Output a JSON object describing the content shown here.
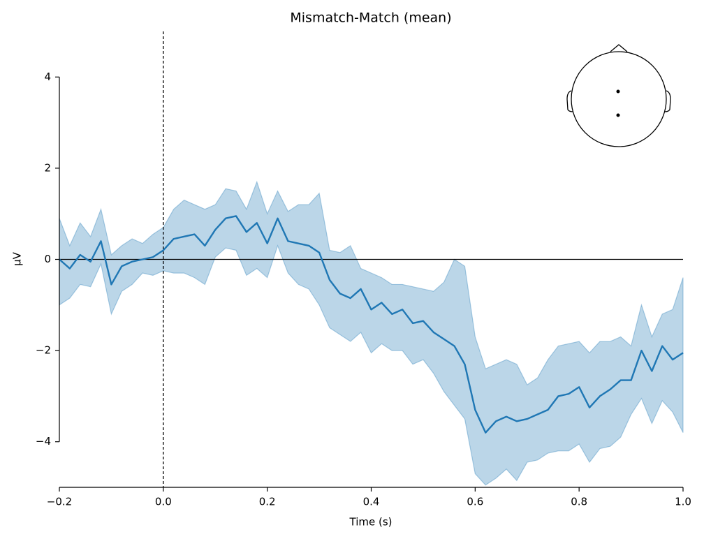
{
  "chart_data": {
    "type": "line",
    "title": "Mismatch-Match (mean)",
    "xlabel": "Time (s)",
    "ylabel": "µV",
    "color": "#1f77b4",
    "x": [
      -0.2,
      -0.18,
      -0.16,
      -0.14,
      -0.12,
      -0.1,
      -0.08,
      -0.06,
      -0.04,
      -0.02,
      0,
      0.02,
      0.04,
      0.06,
      0.08,
      0.1,
      0.12,
      0.14,
      0.16,
      0.18,
      0.2,
      0.22,
      0.24,
      0.26,
      0.28,
      0.3,
      0.32,
      0.34,
      0.36,
      0.38,
      0.4,
      0.42,
      0.44,
      0.46,
      0.48,
      0.5,
      0.52,
      0.54,
      0.56,
      0.58,
      0.6,
      0.62,
      0.64,
      0.66,
      0.68,
      0.7,
      0.72,
      0.74,
      0.76,
      0.78,
      0.8,
      0.82,
      0.84,
      0.86,
      0.88,
      0.9,
      0.92,
      0.94,
      0.96,
      0.98,
      1.0
    ],
    "values": [
      0,
      -0.2,
      0.1,
      -0.05,
      0.4,
      -0.55,
      -0.15,
      -0.05,
      0,
      0.05,
      0.2,
      0.45,
      0.5,
      0.55,
      0.3,
      0.65,
      0.9,
      0.95,
      0.6,
      0.8,
      0.35,
      0.9,
      0.4,
      0.35,
      0.3,
      0.15,
      -0.45,
      -0.75,
      -0.85,
      -0.65,
      -1.1,
      -0.95,
      -1.2,
      -1.1,
      -1.4,
      -1.35,
      -1.6,
      -1.75,
      -1.9,
      -2.3,
      -3.3,
      -3.8,
      -3.55,
      -3.45,
      -3.55,
      -3.5,
      -3.4,
      -3.3,
      -3,
      -2.95,
      -2.8,
      -3.25,
      -3,
      -2.85,
      -2.65,
      -2.65,
      -2,
      -2.45,
      -1.9,
      -2.2,
      -2.05
    ],
    "ci_upper": [
      0.9,
      0.3,
      0.8,
      0.5,
      1.1,
      0.1,
      0.3,
      0.45,
      0.35,
      0.55,
      0.7,
      1.1,
      1.3,
      1.2,
      1.1,
      1.2,
      1.55,
      1.5,
      1.1,
      1.7,
      1,
      1.5,
      1.05,
      1.2,
      1.2,
      1.45,
      0.2,
      0.15,
      0.3,
      -0.2,
      -0.3,
      -0.4,
      -0.55,
      -0.55,
      -0.6,
      -0.65,
      -0.7,
      -0.5,
      0,
      -0.15,
      -1.7,
      -2.4,
      -2.3,
      -2.2,
      -2.3,
      -2.75,
      -2.6,
      -2.2,
      -1.9,
      -1.85,
      -1.8,
      -2.05,
      -1.8,
      -1.8,
      -1.7,
      -1.9,
      -1,
      -1.7,
      -1.2,
      -1.1,
      -0.4
    ],
    "ci_lower": [
      -1,
      -0.85,
      -0.55,
      -0.6,
      -0.1,
      -1.2,
      -0.7,
      -0.55,
      -0.3,
      -0.35,
      -0.25,
      -0.3,
      -0.3,
      -0.4,
      -0.55,
      0.05,
      0.25,
      0.2,
      -0.35,
      -0.2,
      -0.4,
      0.3,
      -0.3,
      -0.55,
      -0.65,
      -1,
      -1.5,
      -1.65,
      -1.8,
      -1.6,
      -2.05,
      -1.85,
      -2,
      -2,
      -2.3,
      -2.2,
      -2.5,
      -2.9,
      -3.2,
      -3.5,
      -4.7,
      -4.95,
      -4.8,
      -4.6,
      -4.85,
      -4.45,
      -4.4,
      -4.25,
      -4.2,
      -4.2,
      -4.05,
      -4.45,
      -4.15,
      -4.1,
      -3.9,
      -3.4,
      -3.05,
      -3.6,
      -3.1,
      -3.35,
      -3.8
    ],
    "xlim": [
      -0.2,
      1.0
    ],
    "ylim": [
      -5,
      5
    ],
    "xticks": [
      {
        "value": -0.2,
        "label": "−0.2"
      },
      {
        "value": 0,
        "label": "0.0"
      },
      0.2,
      0.4,
      0.6,
      0.8,
      {
        "value": 1.0,
        "label": "1.0"
      }
    ],
    "yticks": [
      {
        "value": -4,
        "label": "−4"
      },
      {
        "value": -2,
        "label": "−2"
      },
      0,
      2,
      4
    ],
    "vline": 0,
    "hline": 0
  }
}
